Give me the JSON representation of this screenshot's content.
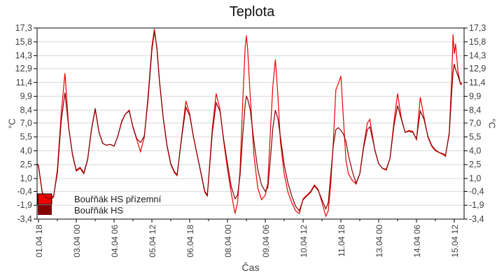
{
  "chart": {
    "title": "Teplota",
    "x_axis_label": "Čas",
    "y_axis_unit": "°C",
    "colors": {
      "grid": "#d8d8d8",
      "frame": "#000000",
      "tick_text": "#3f3f3f",
      "background": "#ffffff"
    }
  },
  "chart_data": {
    "type": "line",
    "title": "Teplota",
    "xlabel": "Čas",
    "ylabel": "°C",
    "ylim": [
      -3.4,
      17.3
    ],
    "grid": "horizontal",
    "legend_position": "bottom-left-inside",
    "y_tick_values": [
      17.3,
      15.8,
      14.3,
      12.9,
      11.4,
      9.9,
      8.4,
      7.0,
      5.5,
      4.0,
      2.5,
      1.0,
      -0.4,
      -1.9,
      -3.4
    ],
    "y_tick_labels": [
      "17,3",
      "15,8",
      "14,3",
      "12,9",
      "11,4",
      "9,9",
      "8,4",
      "7,0",
      "5,5",
      "4,0",
      "2,5",
      "1,0",
      "-0,4",
      "-1,9",
      "-3,4"
    ],
    "x_tick_labels": [
      "01.04 18",
      "03.04 00",
      "04.04 06",
      "05.04 12",
      "06.04 18",
      "08.04 00",
      "09.04 06",
      "10.04 12",
      "11.04 18",
      "13.04 00",
      "14.04 06",
      "15.04 12"
    ],
    "x": [
      "01.04 17",
      "01.04 18",
      "01.04 21",
      "02.04 00",
      "02.04 03",
      "02.04 06",
      "02.04 09",
      "02.04 12",
      "02.04 15",
      "02.04 18",
      "02.04 21",
      "03.04 00",
      "03.04 03",
      "03.04 06",
      "03.04 09",
      "03.04 12",
      "03.04 15",
      "03.04 18",
      "03.04 21",
      "04.04 00",
      "04.04 03",
      "04.04 06",
      "04.04 09",
      "04.04 12",
      "04.04 15",
      "04.04 18",
      "04.04 21",
      "05.04 00",
      "05.04 03",
      "05.04 06",
      "05.04 09",
      "05.04 12",
      "05.04 14",
      "05.04 16",
      "05.04 18",
      "05.04 21",
      "06.04 00",
      "06.04 03",
      "06.04 06",
      "06.04 08",
      "06.04 12",
      "06.04 15",
      "06.04 18",
      "06.04 21",
      "07.04 00",
      "07.04 03",
      "07.04 06",
      "07.04 08",
      "07.04 12",
      "07.04 15",
      "07.04 18",
      "07.04 21",
      "08.04 00",
      "08.04 03",
      "08.04 06",
      "08.04 08",
      "08.04 10",
      "08.04 12",
      "08.04 14",
      "08.04 15",
      "08.04 16",
      "08.04 18",
      "08.04 21",
      "09.04 00",
      "09.04 03",
      "09.04 06",
      "09.04 08",
      "09.04 10",
      "09.04 12",
      "09.04 14",
      "09.04 16",
      "09.04 18",
      "09.04 21",
      "10.04 00",
      "10.04 03",
      "10.04 06",
      "10.04 09",
      "10.04 12",
      "10.04 15",
      "10.04 18",
      "10.04 21",
      "11.04 00",
      "11.04 03",
      "11.04 06",
      "11.04 08",
      "11.04 10",
      "11.04 12",
      "11.04 14",
      "11.04 16",
      "11.04 18",
      "11.04 20",
      "11.04 22",
      "12.04 00",
      "12.04 03",
      "12.04 06",
      "12.04 09",
      "12.04 12",
      "12.04 15",
      "12.04 17",
      "12.04 21",
      "13.04 00",
      "13.04 03",
      "13.04 06",
      "13.04 09",
      "13.04 12",
      "13.04 15",
      "13.04 18",
      "13.04 21",
      "14.04 00",
      "14.04 03",
      "14.04 06",
      "14.04 09",
      "14.04 12",
      "14.04 15",
      "14.04 18",
      "14.04 21",
      "15.04 00",
      "15.04 03",
      "15.04 05",
      "15.04 08",
      "15.04 10",
      "15.04 11",
      "15.04 12",
      "15.04 13",
      "15.04 15",
      "15.04 17",
      "15.04 18"
    ],
    "series": [
      {
        "name": "Bouřňák HS přízemní",
        "color": "#ee0000",
        "values": [
          2.6,
          2.3,
          -0.6,
          -1.2,
          -1.4,
          -1.0,
          2.0,
          8.0,
          12.4,
          6.5,
          3.5,
          1.8,
          2.1,
          1.5,
          3.0,
          6.2,
          8.5,
          6.0,
          4.8,
          4.6,
          4.7,
          4.5,
          5.6,
          7.2,
          8.0,
          8.4,
          6.5,
          5.2,
          3.9,
          5.5,
          10.0,
          15.3,
          17.2,
          15.0,
          11.5,
          7.5,
          4.5,
          2.5,
          1.6,
          1.3,
          6.0,
          9.4,
          8.0,
          5.5,
          3.5,
          1.5,
          -0.5,
          -0.9,
          6.5,
          10.2,
          8.5,
          5.0,
          2.0,
          -0.6,
          -2.8,
          -1.6,
          2.0,
          9.0,
          15.2,
          16.5,
          15.0,
          10.0,
          3.5,
          0.0,
          -1.3,
          -0.8,
          0.5,
          6.0,
          11.0,
          13.9,
          10.0,
          5.0,
          1.5,
          -0.5,
          -1.6,
          -2.5,
          -2.8,
          -1.2,
          -0.8,
          -0.4,
          0.3,
          -0.2,
          -1.6,
          -3.1,
          -2.5,
          0.5,
          5.0,
          10.6,
          11.3,
          12.1,
          7.5,
          3.0,
          1.5,
          0.8,
          0.4,
          1.5,
          4.5,
          7.0,
          7.4,
          4.0,
          2.6,
          2.1,
          1.9,
          3.2,
          7.0,
          10.2,
          7.5,
          6.0,
          6.2,
          6.1,
          5.2,
          9.8,
          7.6,
          5.5,
          4.5,
          4.0,
          3.8,
          3.6,
          3.4,
          6.0,
          12.0,
          16.6,
          14.5,
          15.6,
          12.5,
          11.2,
          11.4
        ]
      },
      {
        "name": "Bouřňák HS",
        "color": "#870000",
        "values": [
          2.6,
          2.4,
          -0.5,
          -1.1,
          -1.2,
          -0.9,
          1.6,
          7.2,
          10.3,
          6.5,
          3.6,
          1.9,
          2.2,
          1.6,
          3.1,
          6.3,
          8.6,
          6.0,
          4.8,
          4.6,
          4.7,
          4.5,
          5.6,
          7.1,
          8.0,
          8.3,
          6.6,
          5.3,
          4.9,
          5.6,
          9.6,
          14.9,
          16.9,
          15.2,
          11.6,
          7.6,
          4.6,
          2.6,
          1.7,
          1.4,
          5.8,
          8.7,
          7.8,
          5.5,
          3.5,
          1.6,
          -0.4,
          -0.8,
          6.0,
          9.2,
          8.3,
          5.2,
          2.6,
          0.1,
          -1.2,
          -0.8,
          1.4,
          5.5,
          9.0,
          9.9,
          9.6,
          8.5,
          5.0,
          2.0,
          0.3,
          -0.4,
          0.0,
          3.0,
          6.5,
          8.4,
          7.5,
          5.5,
          2.5,
          0.5,
          -0.9,
          -2.0,
          -2.5,
          -1.3,
          -0.9,
          -0.5,
          0.2,
          -0.3,
          -1.3,
          -2.3,
          -1.6,
          1.5,
          4.6,
          6.3,
          6.5,
          6.2,
          5.8,
          5.0,
          3.5,
          1.8,
          0.5,
          1.5,
          4.3,
          6.3,
          6.6,
          4.1,
          2.6,
          2.1,
          2.0,
          3.2,
          6.6,
          8.9,
          7.4,
          6.0,
          6.1,
          6.0,
          5.3,
          8.3,
          7.4,
          5.6,
          4.6,
          4.1,
          3.8,
          3.7,
          3.5,
          5.8,
          10.5,
          12.5,
          13.4,
          12.8,
          12.1,
          11.2,
          11.2
        ]
      }
    ]
  }
}
